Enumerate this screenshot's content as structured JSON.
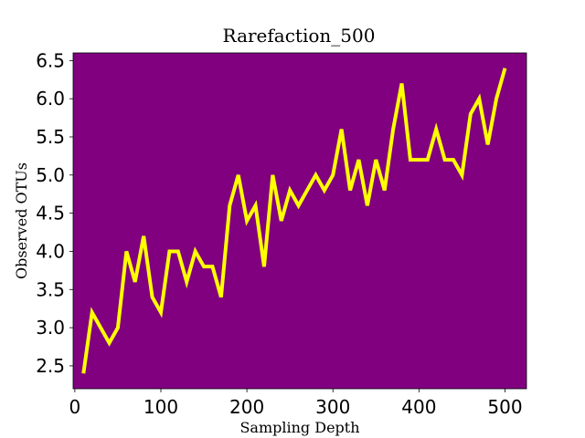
{
  "chart_data": {
    "type": "line",
    "title": "Rarefaction_500",
    "xlabel": "Sampling Depth",
    "ylabel": "Observed OTUs",
    "xlim": [
      -2,
      525
    ],
    "ylim": [
      2.2,
      6.6
    ],
    "xticks": [
      0,
      100,
      200,
      300,
      400,
      500
    ],
    "yticks": [
      2.5,
      3.0,
      3.5,
      4.0,
      4.5,
      5.0,
      5.5,
      6.0,
      6.5
    ],
    "xtick_labels": [
      "0",
      "100",
      "200",
      "300",
      "400",
      "500"
    ],
    "ytick_labels": [
      "2.5",
      "3.0",
      "3.5",
      "4.0",
      "4.5",
      "5.0",
      "5.5",
      "6.0",
      "6.5"
    ],
    "grid": false,
    "colors": {
      "background": "#800080",
      "line": "#ffff00",
      "axis": "#000000"
    },
    "series": [
      {
        "name": "Observed OTUs",
        "x": [
          10,
          20,
          30,
          40,
          50,
          60,
          70,
          80,
          90,
          100,
          110,
          120,
          130,
          140,
          150,
          160,
          170,
          180,
          190,
          200,
          210,
          220,
          230,
          240,
          250,
          260,
          270,
          280,
          290,
          300,
          310,
          320,
          330,
          340,
          350,
          360,
          370,
          380,
          390,
          400,
          410,
          420,
          430,
          440,
          450,
          460,
          470,
          480,
          490,
          500
        ],
        "values": [
          2.4,
          3.2,
          3.0,
          2.8,
          3.0,
          4.0,
          3.6,
          4.2,
          3.4,
          3.2,
          4.0,
          4.0,
          3.6,
          4.0,
          3.8,
          3.8,
          3.4,
          4.6,
          5.0,
          4.4,
          4.6,
          3.8,
          5.0,
          4.4,
          4.8,
          4.6,
          4.8,
          5.0,
          4.8,
          5.0,
          5.6,
          4.8,
          5.2,
          4.6,
          5.2,
          4.8,
          5.6,
          6.2,
          5.2,
          5.2,
          5.2,
          5.6,
          5.2,
          5.2,
          5.0,
          5.8,
          6.0,
          5.4,
          6.0,
          6.4
        ]
      }
    ]
  }
}
